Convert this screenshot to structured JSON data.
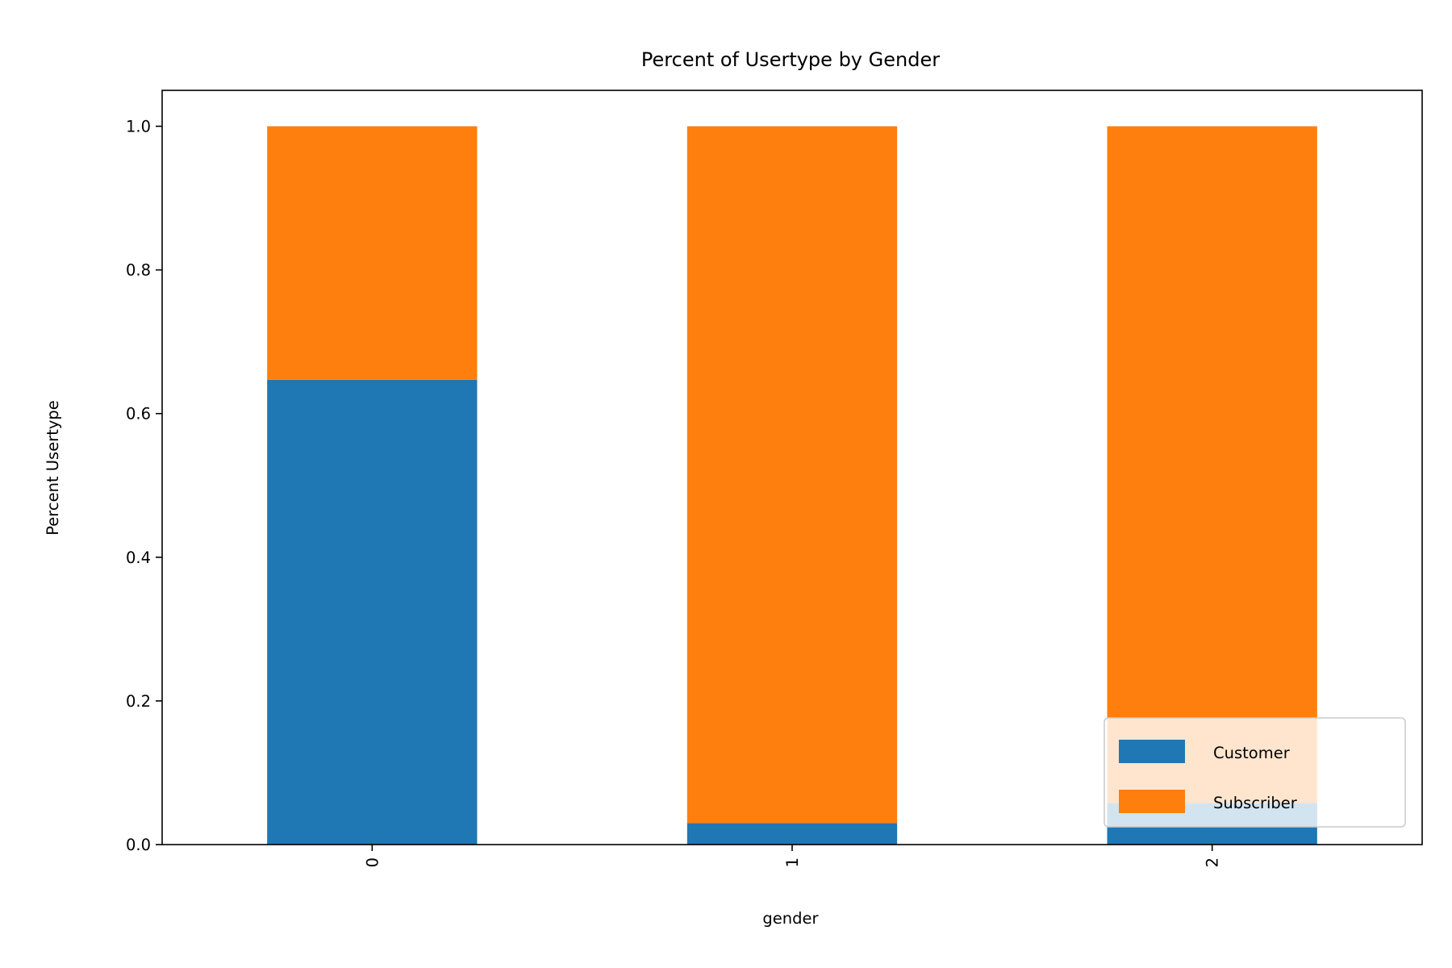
{
  "chart_data": {
    "type": "bar",
    "stacked": true,
    "title": "Percent of Usertype by Gender",
    "xlabel": "gender",
    "ylabel": "Percent Usertype",
    "categories": [
      "0",
      "1",
      "2"
    ],
    "series": [
      {
        "name": "Customer",
        "color": "#1f77b4",
        "values": [
          0.647,
          0.03,
          0.058
        ]
      },
      {
        "name": "Subscriber",
        "color": "#ff7f0e",
        "values": [
          0.353,
          0.97,
          0.942
        ]
      }
    ],
    "ylim": [
      0.0,
      1.05
    ],
    "yticks": [
      0.0,
      0.2,
      0.4,
      0.6,
      0.8,
      1.0
    ],
    "ytick_labels": [
      "0.0",
      "0.2",
      "0.4",
      "0.6",
      "0.8",
      "1.0"
    ],
    "xtick_rotation": "vertical",
    "grid": false,
    "legend": {
      "position": "lower right",
      "entries": [
        "Customer",
        "Subscriber"
      ]
    }
  }
}
